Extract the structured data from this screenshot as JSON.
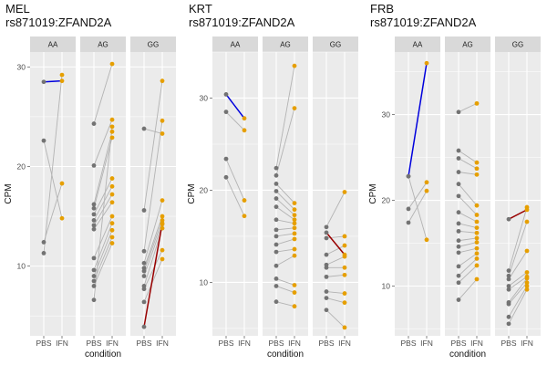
{
  "chart_data": [
    {
      "type": "scatter",
      "title": "MEL",
      "subtitle": "rs871019:ZFAND2A",
      "xlabel": "condition",
      "ylabel": "CPM",
      "x_categories": [
        "PBS",
        "IFN"
      ],
      "ylim": [
        3,
        31.5
      ],
      "yticks": [
        10,
        20,
        30
      ],
      "facets": [
        {
          "label": "AA",
          "pairs": [
            [
              28.5,
              28.6
            ],
            [
              22.6,
              14.8
            ],
            [
              12.4,
              18.3
            ],
            [
              11.3,
              29.2
            ]
          ],
          "highlight": {
            "pbs": 28.5,
            "ifn": 28.6,
            "color": "#0000dd"
          }
        },
        {
          "label": "AG",
          "pairs": [
            [
              24.3,
              30.3
            ],
            [
              20.1,
              24.7
            ],
            [
              16.2,
              23.5
            ],
            [
              15.8,
              22.9
            ],
            [
              15.2,
              18.8
            ],
            [
              14.6,
              18.0
            ],
            [
              14.1,
              17.2
            ],
            [
              13.7,
              16.4
            ],
            [
              10.8,
              15.0
            ],
            [
              9.6,
              14.3
            ],
            [
              9.0,
              13.6
            ],
            [
              8.5,
              12.9
            ],
            [
              8.0,
              12.3
            ],
            [
              6.6,
              24.0
            ]
          ],
          "highlight": null
        },
        {
          "label": "GG",
          "pairs": [
            [
              23.8,
              23.3
            ],
            [
              15.6,
              28.6
            ],
            [
              11.5,
              24.6
            ],
            [
              10.3,
              16.6
            ],
            [
              9.8,
              15.0
            ],
            [
              9.5,
              14.6
            ],
            [
              9.0,
              14.2
            ],
            [
              8.0,
              13.8
            ],
            [
              7.7,
              11.6
            ],
            [
              6.4,
              10.7
            ],
            [
              3.9,
              14.3
            ]
          ],
          "highlight": {
            "pbs": 3.9,
            "ifn": 14.3,
            "color": "#990000"
          }
        }
      ]
    },
    {
      "type": "scatter",
      "title": "KRT",
      "subtitle": "rs871019:ZFAND2A",
      "xlabel": "condition",
      "ylabel": "CPM",
      "x_categories": [
        "PBS",
        "IFN"
      ],
      "ylim": [
        4.2,
        35
      ],
      "yticks": [
        10,
        20,
        30
      ],
      "facets": [
        {
          "label": "AA",
          "pairs": [
            [
              30.4,
              27.8
            ],
            [
              28.5,
              26.5
            ],
            [
              23.4,
              18.9
            ],
            [
              21.4,
              17.2
            ]
          ],
          "highlight": {
            "pbs": 30.4,
            "ifn": 27.8,
            "color": "#0000dd"
          }
        },
        {
          "label": "AG",
          "pairs": [
            [
              22.4,
              33.5
            ],
            [
              21.6,
              28.9
            ],
            [
              20.7,
              18.6
            ],
            [
              19.9,
              17.9
            ],
            [
              19.1,
              17.3
            ],
            [
              18.2,
              16.8
            ],
            [
              16.8,
              16.4
            ],
            [
              15.7,
              15.9
            ],
            [
              15.0,
              15.3
            ],
            [
              14.1,
              14.7
            ],
            [
              13.3,
              13.6
            ],
            [
              11.8,
              12.9
            ],
            [
              10.4,
              9.7
            ],
            [
              9.6,
              8.9
            ],
            [
              7.9,
              7.4
            ]
          ],
          "highlight": null
        },
        {
          "label": "GG",
          "pairs": [
            [
              16.0,
              19.8
            ],
            [
              15.4,
              13.0
            ],
            [
              14.8,
              15.0
            ],
            [
              13.0,
              14.0
            ],
            [
              11.9,
              12.8
            ],
            [
              11.6,
              11.6
            ],
            [
              10.6,
              10.8
            ],
            [
              9.0,
              8.8
            ],
            [
              8.3,
              7.8
            ],
            [
              7.0,
              5.1
            ]
          ],
          "highlight": {
            "pbs": 15.4,
            "ifn": 13.0,
            "color": "#990000"
          }
        }
      ]
    },
    {
      "type": "scatter",
      "title": "FRB",
      "subtitle": "rs871019:ZFAND2A",
      "xlabel": "condition",
      "ylabel": "CPM",
      "x_categories": [
        "PBS",
        "IFN"
      ],
      "ylim": [
        4.2,
        37.3
      ],
      "yticks": [
        10,
        20,
        30
      ],
      "facets": [
        {
          "label": "AA",
          "pairs": [
            [
              22.8,
              36.0
            ],
            [
              19.0,
              22.1
            ],
            [
              17.4,
              21.1
            ],
            [
              22.8,
              15.4
            ]
          ],
          "highlight": {
            "pbs": 22.8,
            "ifn": 36.0,
            "color": "#0000dd"
          }
        },
        {
          "label": "AG",
          "pairs": [
            [
              30.3,
              31.3
            ],
            [
              25.8,
              24.4
            ],
            [
              24.9,
              23.7
            ],
            [
              23.3,
              23.0
            ],
            [
              21.9,
              19.4
            ],
            [
              20.5,
              18.3
            ],
            [
              18.6,
              17.5
            ],
            [
              17.3,
              16.8
            ],
            [
              16.4,
              16.2
            ],
            [
              15.3,
              15.6
            ],
            [
              14.6,
              15.1
            ],
            [
              13.9,
              14.4
            ],
            [
              12.3,
              13.8
            ],
            [
              11.2,
              13.2
            ],
            [
              10.4,
              12.4
            ],
            [
              8.4,
              10.8
            ]
          ],
          "highlight": null
        },
        {
          "label": "GG",
          "pairs": [
            [
              17.8,
              18.9
            ],
            [
              11.8,
              19.2
            ],
            [
              11.2,
              17.5
            ],
            [
              10.8,
              14.1
            ],
            [
              10.0,
              11.6
            ],
            [
              9.6,
              11.1
            ],
            [
              8.1,
              10.9
            ],
            [
              7.9,
              10.4
            ],
            [
              6.4,
              10.0
            ],
            [
              5.6,
              9.6
            ]
          ],
          "highlight": {
            "pbs": 17.8,
            "ifn": 18.9,
            "color": "#990000"
          }
        }
      ]
    }
  ],
  "colors": {
    "panel_background": "#ebebeb",
    "gridline": "#ffffff",
    "strip_background": "#d9d9d9",
    "pbs_point": "#737373",
    "ifn_point": "#e69f00",
    "connector_line": "#b3b3b3"
  }
}
